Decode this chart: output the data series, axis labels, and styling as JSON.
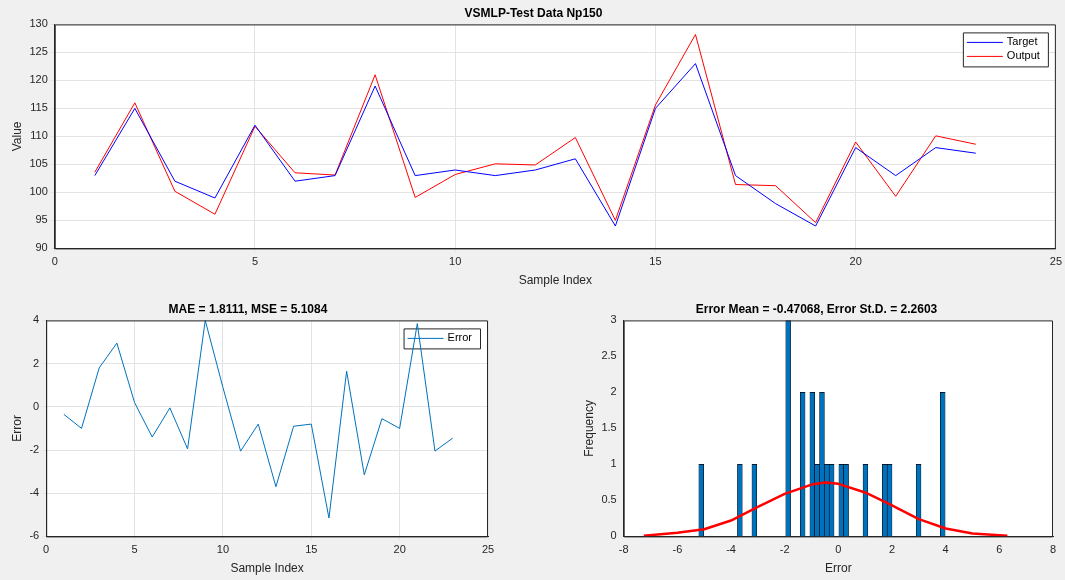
{
  "chart_data": [
    {
      "type": "line",
      "title": "VSMLP-Test Data Np150",
      "xlabel": "Sample Index",
      "ylabel": "Value",
      "x": [
        1,
        2,
        3,
        4,
        5,
        6,
        7,
        8,
        9,
        10,
        11,
        12,
        13,
        14,
        15,
        16,
        17,
        18,
        19,
        20,
        21,
        22,
        23
      ],
      "series": [
        {
          "name": "Target",
          "color": "#0000ff",
          "values": [
            103,
            115,
            102,
            99,
            112,
            102,
            103,
            119,
            103,
            104,
            103,
            104,
            106,
            94,
            115,
            123,
            103,
            98,
            94,
            108,
            103,
            108,
            107
          ]
        },
        {
          "name": "Output",
          "color": "#ff0000",
          "values": [
            103.6,
            116,
            100.2,
            96.1,
            111.8,
            103.5,
            103.1,
            121,
            99.1,
            103.2,
            105.1,
            104.9,
            109.8,
            95,
            115.6,
            128.2,
            101.4,
            101.2,
            94.6,
            109,
            99.3,
            110.1,
            108.6
          ]
        }
      ],
      "xlim": [
        0,
        25
      ],
      "xticks": [
        0,
        5,
        10,
        15,
        20,
        25
      ],
      "ylim": [
        90,
        130
      ],
      "yticks": [
        90,
        95,
        100,
        105,
        110,
        115,
        120,
        125,
        130
      ],
      "grid": true,
      "legend": "top right"
    },
    {
      "type": "line",
      "title": "MAE = 1.8111, MSE = 5.1084",
      "xlabel": "Sample Index",
      "ylabel": "Error",
      "x": [
        1,
        2,
        3,
        4,
        5,
        6,
        7,
        8,
        9,
        10,
        11,
        12,
        13,
        14,
        15,
        16,
        17,
        18,
        19,
        20,
        21,
        22,
        23
      ],
      "series": [
        {
          "name": "Error",
          "color": "#0072bd",
          "values": [
            -0.35,
            -1,
            1.8,
            2.95,
            0.2,
            -1.4,
            -0.05,
            -1.95,
            4,
            0.9,
            -2.05,
            -0.8,
            -3.7,
            -0.9,
            -0.8,
            -5.15,
            1.65,
            -3.15,
            -0.55,
            -1,
            3.85,
            -2.05,
            -1.45
          ]
        }
      ],
      "xlim": [
        0,
        25
      ],
      "xticks": [
        0,
        5,
        10,
        15,
        20,
        25
      ],
      "ylim": [
        -6,
        4
      ],
      "yticks": [
        -6,
        -4,
        -2,
        0,
        2,
        4
      ],
      "grid": true,
      "legend": "top right"
    },
    {
      "type": "histogram",
      "title": "Error Mean = -0.47068, Error St.D. = 2.2603",
      "xlabel": "Error",
      "ylabel": "Frequency",
      "color": "#0072bd",
      "bins": [
        -5.2,
        -5.02,
        -4.84,
        -4.66,
        -4.48,
        -4.3,
        -4.12,
        -3.94,
        -3.76,
        -3.58,
        -3.4,
        -3.22,
        -3.04,
        -2.86,
        -2.68,
        -2.5,
        -2.32,
        -2.14,
        -1.96,
        -1.78,
        -1.6,
        -1.42,
        -1.24,
        -1.06,
        -0.88,
        -0.7,
        -0.52,
        -0.34,
        -0.16,
        0.02,
        0.2,
        0.38,
        0.56,
        0.74,
        0.92,
        1.1,
        1.28,
        1.46,
        1.64,
        1.82,
        2.0,
        2.18,
        2.36,
        2.54,
        2.72,
        2.9,
        3.08,
        3.26,
        3.44,
        3.62,
        3.8,
        3.98
      ],
      "values": [
        1,
        0,
        0,
        0,
        0,
        0,
        0,
        0,
        1,
        0,
        0,
        1,
        0,
        0,
        0,
        0,
        0,
        0,
        3,
        0,
        0,
        2,
        0,
        2,
        1,
        2,
        1,
        1,
        0,
        1,
        1,
        0,
        0,
        0,
        1,
        0,
        0,
        0,
        1,
        1,
        0,
        0,
        0,
        0,
        0,
        1,
        0,
        0,
        0,
        0,
        2
      ],
      "series": [
        {
          "type": "line",
          "color": "#ff0000",
          "x": [
            -7.25,
            -6,
            -5,
            -4,
            -3,
            -2,
            -1,
            -0.47,
            0,
            1,
            2,
            3,
            4,
            5,
            6.3
          ],
          "values": [
            0.01,
            0.05,
            0.1,
            0.22,
            0.41,
            0.59,
            0.72,
            0.75,
            0.73,
            0.61,
            0.43,
            0.24,
            0.11,
            0.04,
            0.01
          ]
        }
      ],
      "xlim": [
        -8,
        8
      ],
      "xticks": [
        -8,
        -6,
        -4,
        -2,
        0,
        2,
        4,
        6,
        8
      ],
      "ylim": [
        0,
        3
      ],
      "yticks": [
        0,
        0.5,
        1,
        1.5,
        2,
        2.5,
        3
      ]
    }
  ]
}
